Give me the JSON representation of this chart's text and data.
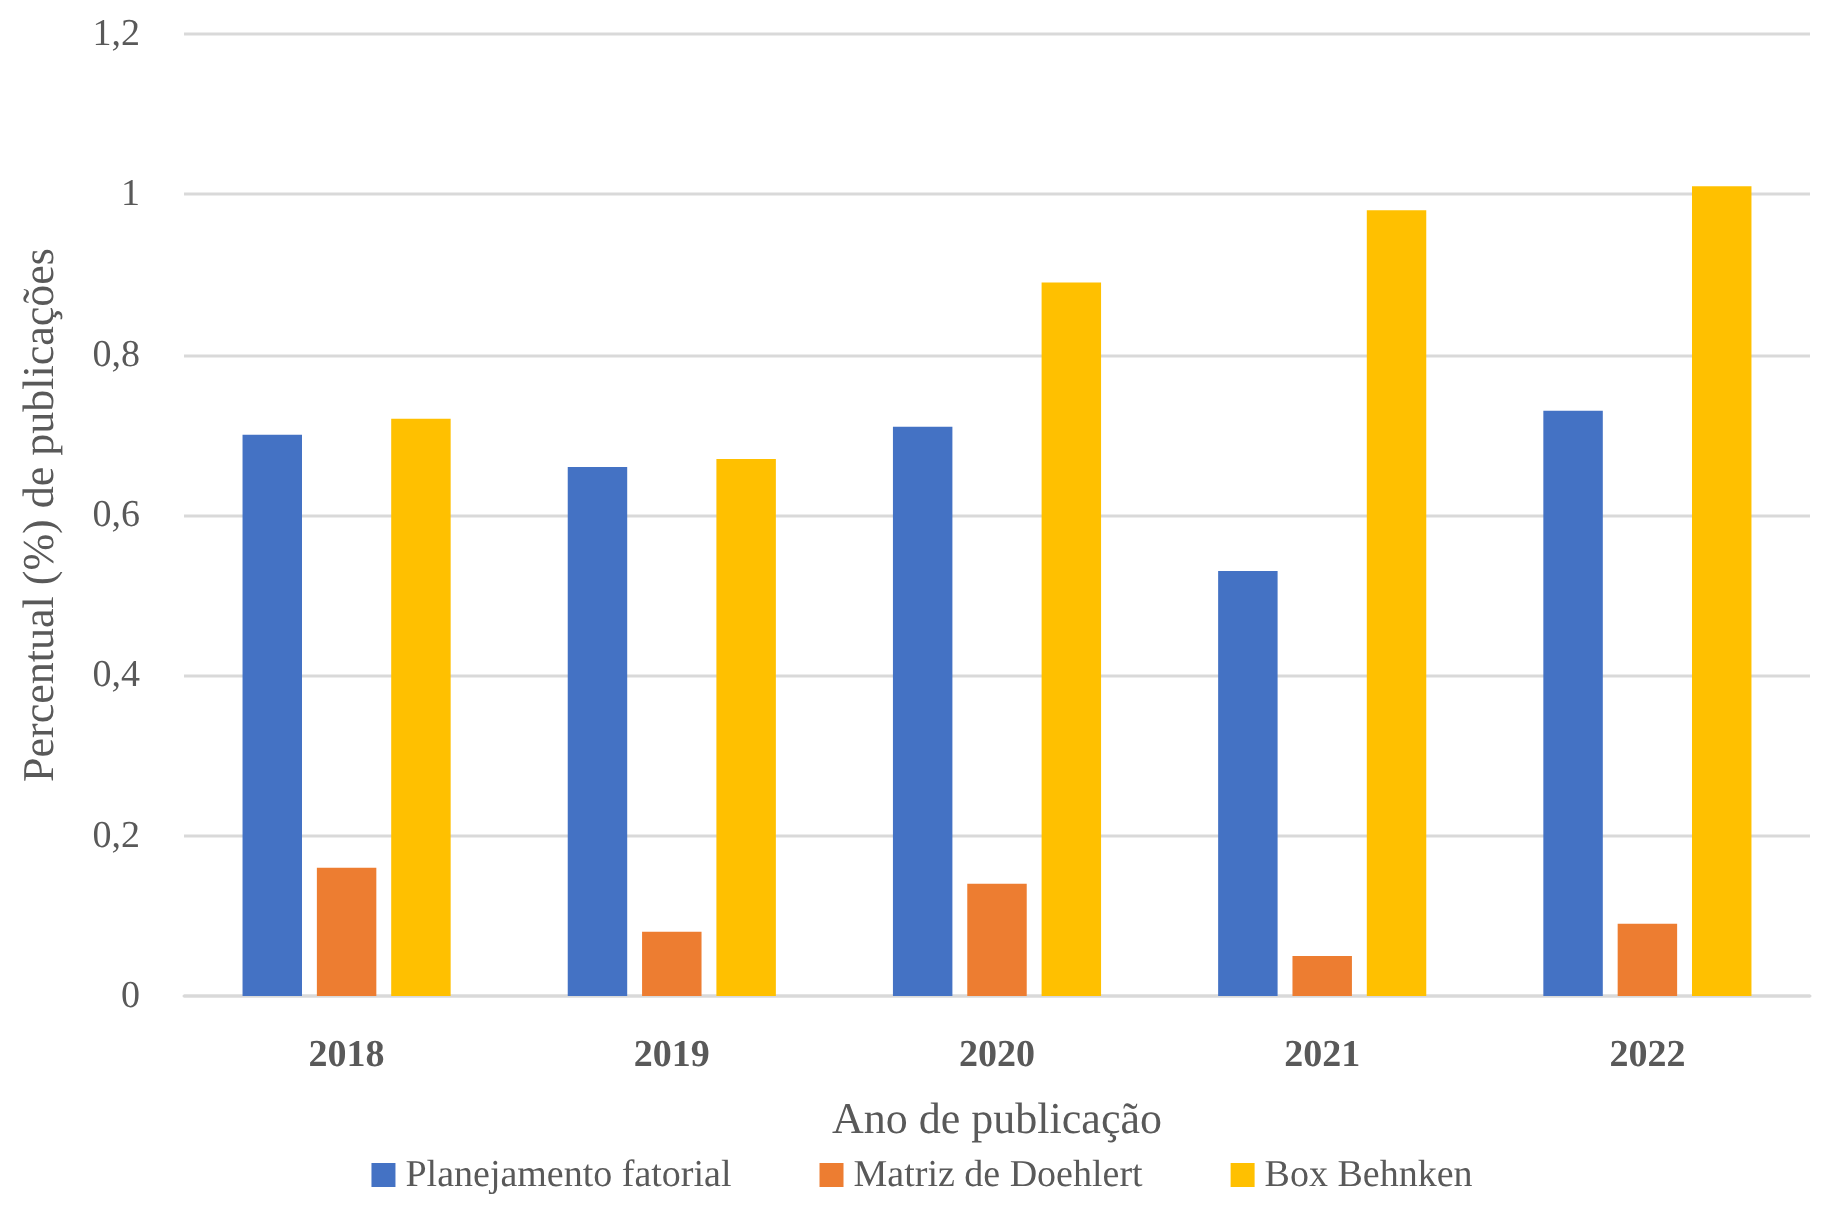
{
  "chart_data": {
    "type": "bar",
    "xlabel": "Ano de publicação",
    "ylabel": "Percentual (%) de publicações",
    "categories": [
      "2018",
      "2019",
      "2020",
      "2021",
      "2022"
    ],
    "series": [
      {
        "name": "Planejamento fatorial",
        "color": "#4472c4",
        "values": [
          0.7,
          0.66,
          0.71,
          0.53,
          0.73
        ]
      },
      {
        "name": "Matriz de Doehlert",
        "color": "#ed7d31",
        "values": [
          0.16,
          0.08,
          0.14,
          0.05,
          0.09
        ]
      },
      {
        "name": "Box Behnken",
        "color": "#ffc000",
        "values": [
          0.72,
          0.67,
          0.89,
          0.98,
          1.01
        ]
      }
    ],
    "ylim": [
      0,
      1.2
    ],
    "yticks": [
      0,
      {
        "value": 0.2,
        "label": "0,2"
      },
      {
        "value": 0.4,
        "label": "0,4"
      },
      {
        "value": 0.6,
        "label": "0,6"
      },
      {
        "value": 0.8,
        "label": "0,8"
      },
      1,
      {
        "value": 1.2,
        "label": "1,2"
      }
    ],
    "grid": "y",
    "legend": "bottom"
  }
}
